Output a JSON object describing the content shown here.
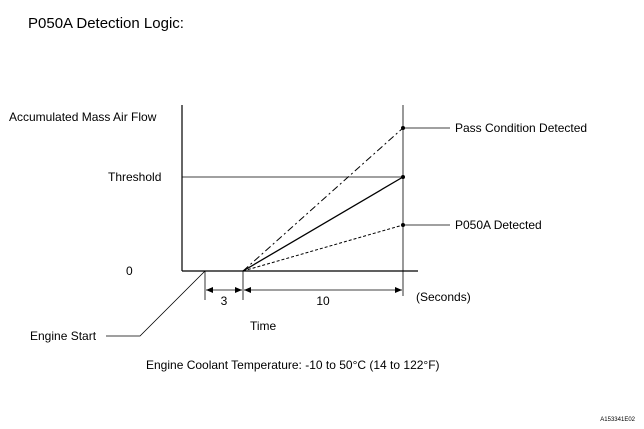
{
  "title": "P050A Detection Logic:",
  "y_axis_label": "Accumulated Mass Air Flow",
  "threshold_label": "Threshold",
  "zero_label": "0",
  "time_label": "Time",
  "seconds_label": "(Seconds)",
  "interval_1": "3",
  "interval_2": "10",
  "engine_start_label": "Engine Start",
  "pass_label": "Pass Condition Detected",
  "fail_label": "P050A Detected",
  "condition_note": "Engine Coolant Temperature: -10 to 50°C (14 to 122°F)",
  "figure_id": "A153341E02"
}
